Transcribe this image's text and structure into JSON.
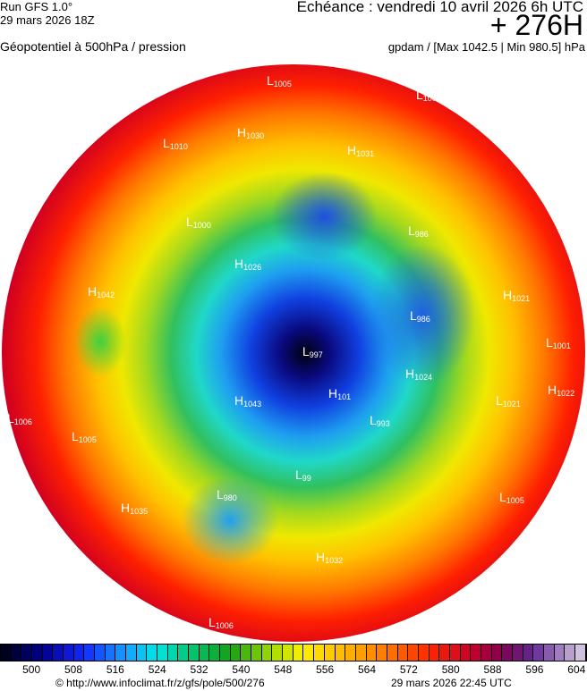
{
  "header": {
    "run": "Run GFS 1.0°",
    "run_date": "29 mars 2026 18Z",
    "parameter": "Géopotentiel à 500hPa / pression",
    "echeance": "Echéance : vendredi 10 avril 2026 6h UTC",
    "offset": "+ 276H",
    "units": "gpdam / [Max 1042.5 | Min 980.5] hPa"
  },
  "map": {
    "centers": [
      {
        "type": "L",
        "value": "1005"
      },
      {
        "type": "L",
        "value": "100"
      },
      {
        "type": "H",
        "value": "1030"
      },
      {
        "type": "H",
        "value": "1031"
      },
      {
        "type": "L",
        "value": "1010"
      },
      {
        "type": "L",
        "value": "1000"
      },
      {
        "type": "L",
        "value": "986"
      },
      {
        "type": "H",
        "value": "1026"
      },
      {
        "type": "H",
        "value": "1042"
      },
      {
        "type": "L",
        "value": "986"
      },
      {
        "type": "H",
        "value": "1021"
      },
      {
        "type": "L",
        "value": "997"
      },
      {
        "type": "L",
        "value": "1001"
      },
      {
        "type": "H",
        "value": "1024"
      },
      {
        "type": "H",
        "value": "101"
      },
      {
        "type": "H",
        "value": "1043"
      },
      {
        "type": "L",
        "value": "1021"
      },
      {
        "type": "H",
        "value": "1022"
      },
      {
        "type": "L",
        "value": "993"
      },
      {
        "type": "L",
        "value": "1006"
      },
      {
        "type": "L",
        "value": "1005"
      },
      {
        "type": "L",
        "value": "99"
      },
      {
        "type": "L",
        "value": "980"
      },
      {
        "type": "H",
        "value": "1035"
      },
      {
        "type": "L",
        "value": "1005"
      },
      {
        "type": "H",
        "value": "1032"
      },
      {
        "type": "L",
        "value": "1006"
      }
    ]
  },
  "colorbar": {
    "min": 494,
    "max": 606,
    "step": 2,
    "ticks": [
      "500",
      "508",
      "516",
      "524",
      "532",
      "540",
      "548",
      "556",
      "564",
      "572",
      "580",
      "588",
      "596",
      "604"
    ]
  },
  "footer": {
    "source": "© http://www.infoclimat.fr/z/gfs/pole/500/276",
    "generated": "29 mars 2026 22:45 UTC"
  }
}
